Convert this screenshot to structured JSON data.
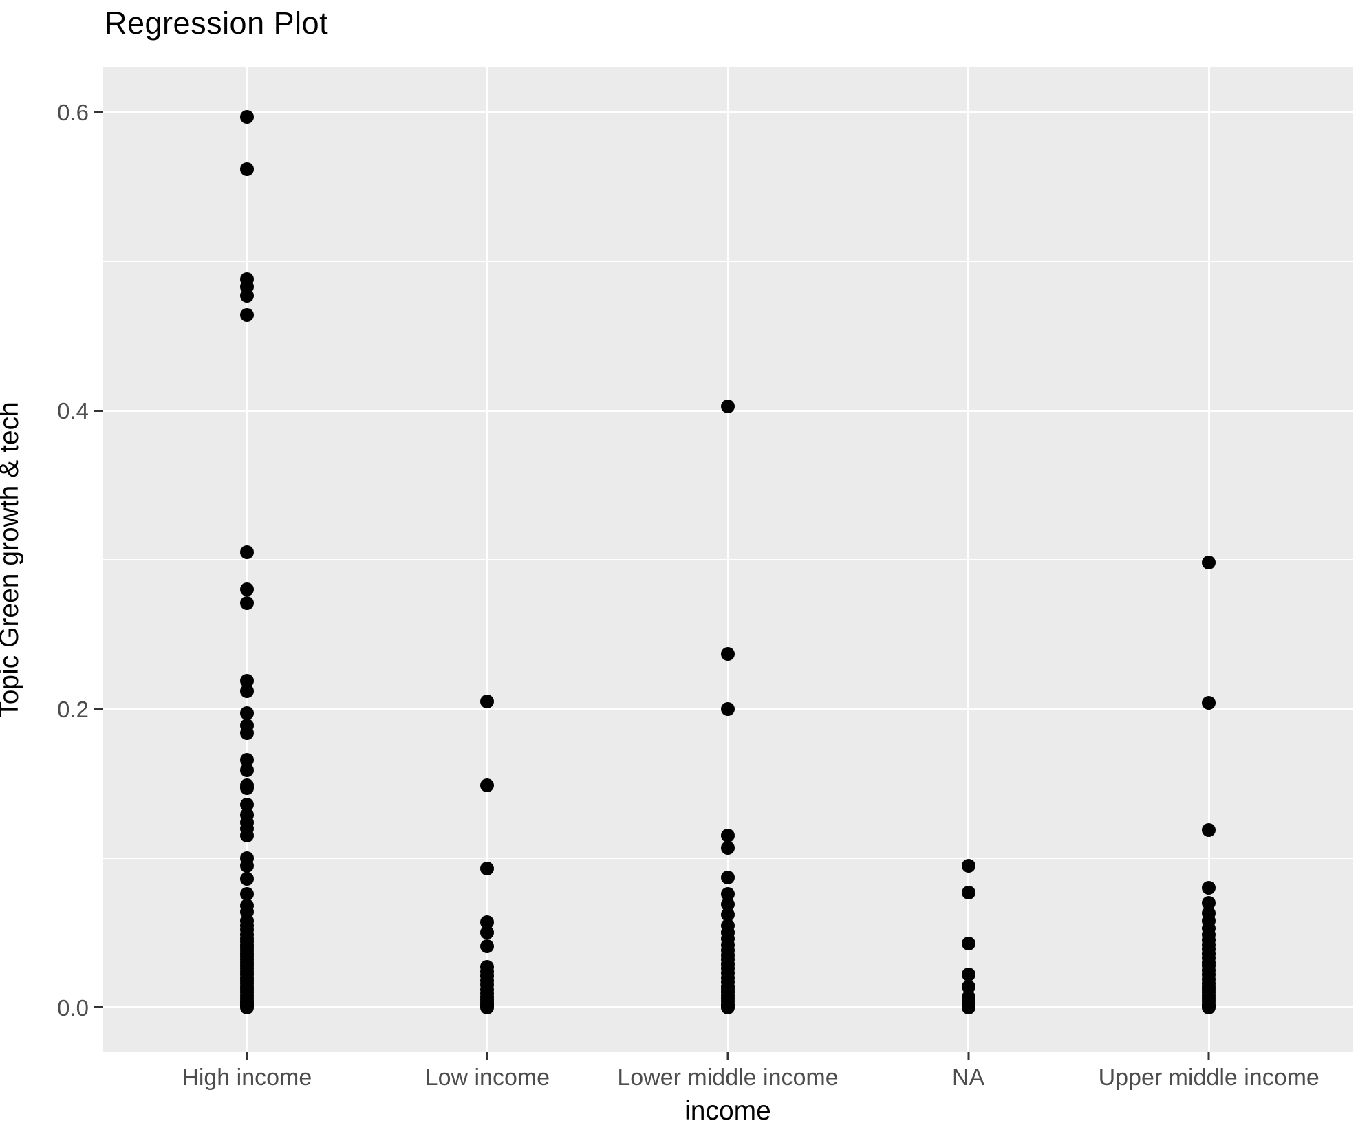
{
  "title": "Regression Plot",
  "colors": {
    "panel_background": "#EBEBEB",
    "gridline": "#FFFFFF",
    "point": "#000000",
    "tick_label": "#4D4D4D",
    "axis_title": "#000000",
    "tick_mark": "#333333"
  },
  "chart_data": {
    "type": "scatter",
    "title": "Regression Plot",
    "xlabel": "income",
    "ylabel": "Topic Green growth & tech",
    "legend": "none",
    "grid": "on",
    "ylim": [
      -0.03,
      0.63
    ],
    "y_major_ticks": [
      0.0,
      0.2,
      0.4,
      0.6
    ],
    "y_tick_labels": [
      "0.0",
      "0.2",
      "0.4",
      "0.6"
    ],
    "y_minor_ticks": [
      0.1,
      0.3,
      0.5
    ],
    "categories": [
      "High income",
      "Low income",
      "Lower middle income",
      "NA",
      "Upper middle income"
    ],
    "series": [
      {
        "name": "High income",
        "values": [
          0.597,
          0.562,
          0.488,
          0.483,
          0.477,
          0.464,
          0.305,
          0.28,
          0.271,
          0.219,
          0.212,
          0.197,
          0.189,
          0.184,
          0.166,
          0.159,
          0.149,
          0.147,
          0.136,
          0.129,
          0.124,
          0.12,
          0.115,
          0.1,
          0.095,
          0.086,
          0.076,
          0.068,
          0.064,
          0.058,
          0.055,
          0.052,
          0.049,
          0.046,
          0.044,
          0.042,
          0.04,
          0.038,
          0.036,
          0.034,
          0.032,
          0.03,
          0.028,
          0.026,
          0.024,
          0.022,
          0.02,
          0.018,
          0.016,
          0.014,
          0.012,
          0.01,
          0.008,
          0.006,
          0.004,
          0.003,
          0.002,
          0.001,
          0.0
        ]
      },
      {
        "name": "Low income",
        "values": [
          0.205,
          0.149,
          0.093,
          0.057,
          0.05,
          0.041,
          0.027,
          0.024,
          0.021,
          0.018,
          0.015,
          0.012,
          0.009,
          0.007,
          0.005,
          0.003,
          0.002,
          0.001,
          0.0
        ]
      },
      {
        "name": "Lower middle income",
        "values": [
          0.403,
          0.237,
          0.2,
          0.115,
          0.107,
          0.087,
          0.076,
          0.069,
          0.062,
          0.055,
          0.05,
          0.046,
          0.042,
          0.038,
          0.035,
          0.032,
          0.029,
          0.026,
          0.023,
          0.02,
          0.017,
          0.014,
          0.012,
          0.01,
          0.008,
          0.006,
          0.004,
          0.002,
          0.001,
          0.0
        ]
      },
      {
        "name": "NA",
        "values": [
          0.095,
          0.077,
          0.043,
          0.022,
          0.014,
          0.007,
          0.003,
          0.001,
          0.0
        ]
      },
      {
        "name": "Upper middle income",
        "values": [
          0.298,
          0.204,
          0.119,
          0.08,
          0.07,
          0.063,
          0.058,
          0.053,
          0.049,
          0.045,
          0.042,
          0.039,
          0.036,
          0.033,
          0.03,
          0.028,
          0.025,
          0.022,
          0.019,
          0.016,
          0.014,
          0.012,
          0.01,
          0.008,
          0.006,
          0.004,
          0.002,
          0.001,
          0.0
        ]
      }
    ]
  }
}
